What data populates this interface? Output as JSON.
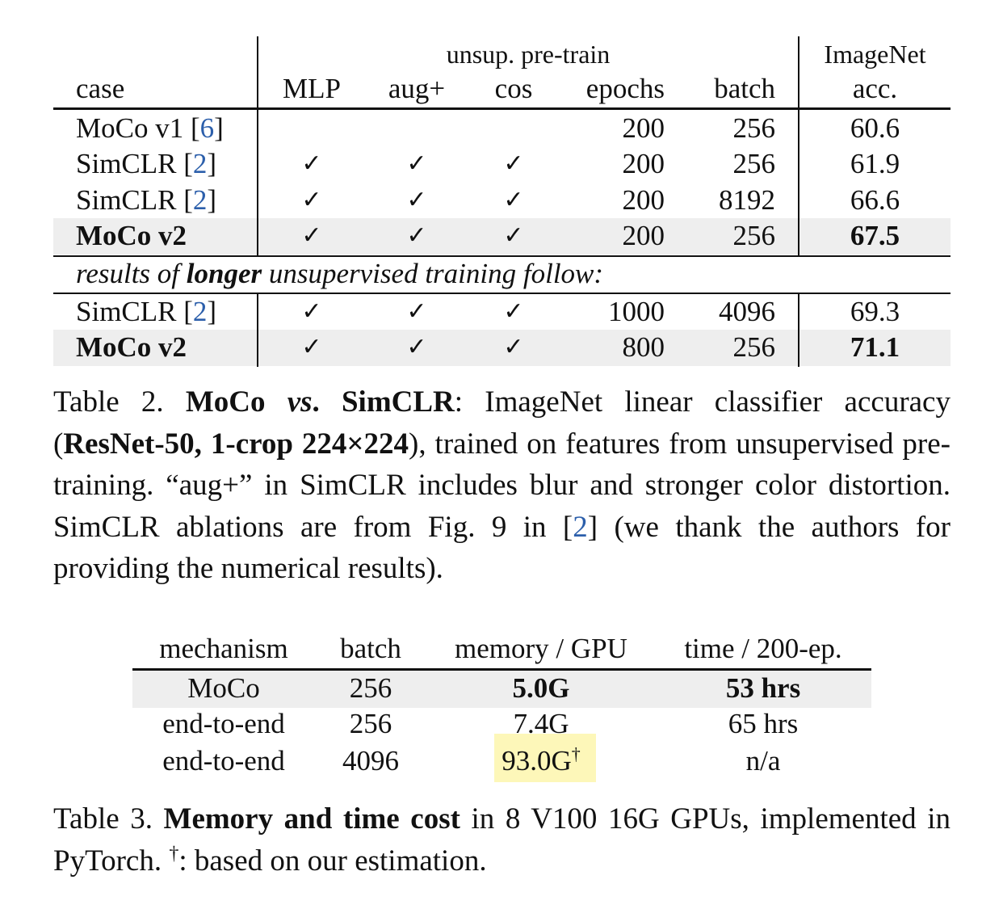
{
  "table2": {
    "group_header": "unsup. pre-train",
    "imagenet_header_top": "ImageNet",
    "columns": [
      "case",
      "MLP",
      "aug+",
      "cos",
      "epochs",
      "batch",
      "acc."
    ],
    "rows": [
      {
        "case": "MoCo v1",
        "cite": "6",
        "mlp": "",
        "aug": "",
        "cos": "",
        "epochs": "200",
        "batch": "256",
        "acc": "60.6"
      },
      {
        "case": "SimCLR",
        "cite": "2",
        "mlp": "✓",
        "aug": "✓",
        "cos": "✓",
        "epochs": "200",
        "batch": "256",
        "acc": "61.9"
      },
      {
        "case": "SimCLR",
        "cite": "2",
        "mlp": "✓",
        "aug": "✓",
        "cos": "✓",
        "epochs": "200",
        "batch": "8192",
        "acc": "66.6"
      },
      {
        "case": "MoCo v2",
        "cite": "",
        "mlp": "✓",
        "aug": "✓",
        "cos": "✓",
        "epochs": "200",
        "batch": "256",
        "acc": "67.5"
      },
      {
        "case": "SimCLR",
        "cite": "2",
        "mlp": "✓",
        "aug": "✓",
        "cos": "✓",
        "epochs": "1000",
        "batch": "4096",
        "acc": "69.3"
      },
      {
        "case": "MoCo v2",
        "cite": "",
        "mlp": "✓",
        "aug": "✓",
        "cos": "✓",
        "epochs": "800",
        "batch": "256",
        "acc": "71.1"
      }
    ],
    "section_note": {
      "pre": "results of ",
      "bold": "longer",
      "post": " unsupervised training follow:"
    },
    "caption": {
      "label": "Table 2. ",
      "title_a": "MoCo ",
      "title_vs": "vs",
      "title_b": ". SimCLR",
      "p1": ": ImageNet linear classifier accuracy (",
      "bold2": "ResNet-50, 1-crop 224×224",
      "p2": "), trained on features from unsupervised pre-training. “aug+” in SimCLR includes blur and stronger color distortion.  SimCLR ablations are from Fig. 9 in [",
      "cite": "2",
      "p3": "] (we thank the authors for providing the numerical results)."
    }
  },
  "table3": {
    "columns": [
      "mechanism",
      "batch",
      "memory / GPU",
      "time / 200-ep."
    ],
    "rows": [
      {
        "mechanism": "MoCo",
        "batch": "256",
        "memory": "5.0G",
        "time": "53 hrs"
      },
      {
        "mechanism": "end-to-end",
        "batch": "256",
        "memory": "7.4G",
        "time": "65 hrs"
      },
      {
        "mechanism": "end-to-end",
        "batch": "4096",
        "memory": "93.0G",
        "memory_mark": "†",
        "time": "n/a"
      }
    ],
    "caption": {
      "label": "Table 3. ",
      "title": "Memory and time cost",
      "p1": " in 8 V100 16G GPUs, implemented in PyTorch. ",
      "dagger": "†",
      "p2": ": based on our estimation."
    }
  },
  "colors": {
    "cite": "#2c5fab",
    "highlight": "#fdf7b9",
    "row_shade": "#eeeeee"
  }
}
